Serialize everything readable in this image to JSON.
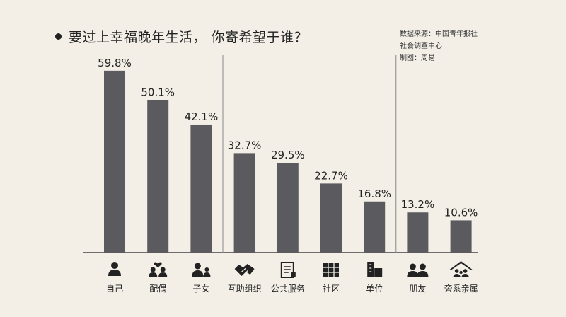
{
  "title": "要过上幸福晚年生活， 你寄希望于谁？",
  "source_lines": [
    "数据来源：中国青年报社",
    "社会调查中心",
    "制图：周易"
  ],
  "colors": {
    "bar": "#5b5b5f",
    "text": "#222222",
    "background": "#f3efe7"
  },
  "chart_data": {
    "type": "bar",
    "title": "要过上幸福晚年生活， 你寄希望于谁？",
    "xlabel": "",
    "ylabel": "",
    "ylim": [
      0,
      60
    ],
    "grid": false,
    "categories": [
      "自己",
      "配偶",
      "子女",
      "互助组织",
      "公共服务",
      "社区",
      "单位",
      "朋友",
      "旁系亲属"
    ],
    "values": [
      59.8,
      50.1,
      42.1,
      32.7,
      29.5,
      22.7,
      16.8,
      13.2,
      10.6
    ],
    "value_labels": [
      "59.8%",
      "50.1%",
      "42.1%",
      "32.7%",
      "29.5%",
      "22.7%",
      "16.8%",
      "13.2%",
      "10.6%"
    ],
    "icons": [
      "person-icon",
      "couple-heart-icon",
      "parent-child-icon",
      "handshake-icon",
      "document-icon",
      "building-icon",
      "office-building-icon",
      "friends-icon",
      "house-family-icon"
    ],
    "group_dividers_after": [
      2,
      6
    ]
  }
}
